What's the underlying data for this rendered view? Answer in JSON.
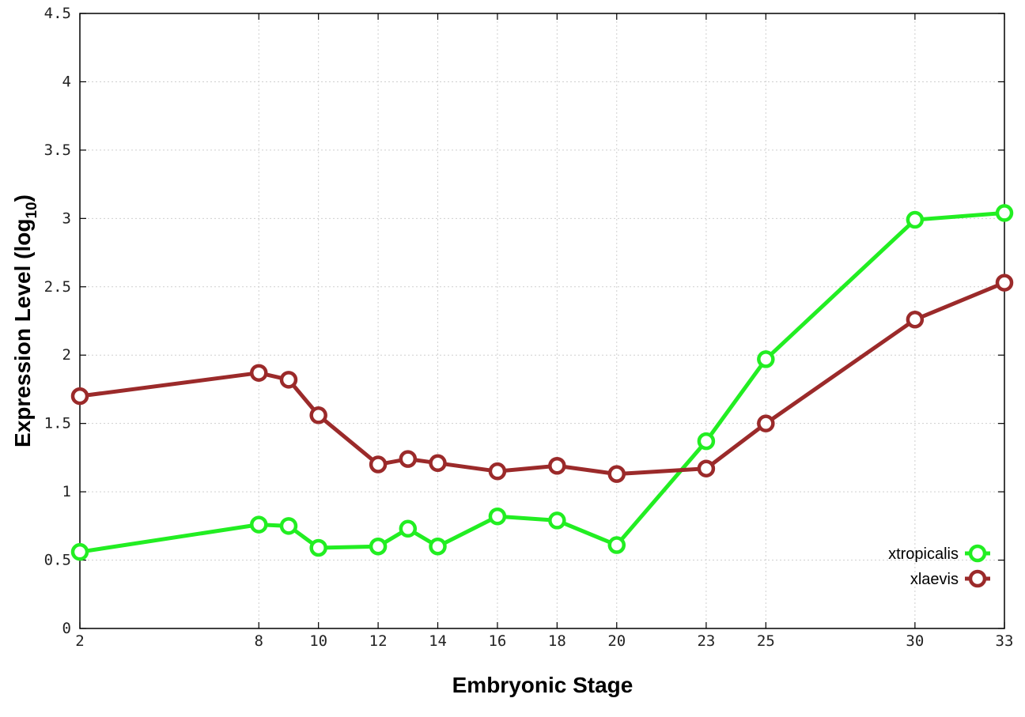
{
  "chart_data": {
    "type": "line",
    "xlabel": "Embryonic Stage",
    "ylabel_main": "Expression Level (log",
    "ylabel_sub": "10",
    "ylabel_close": ")",
    "xlim": [
      2,
      33
    ],
    "ylim": [
      0,
      4.5
    ],
    "x_ticks": [
      2,
      8,
      10,
      12,
      14,
      16,
      18,
      20,
      23,
      25,
      30,
      33
    ],
    "x_tick_labels": [
      "2",
      "8",
      "10",
      "12",
      "14",
      "16",
      "18",
      "20",
      "23",
      "25",
      "30",
      "33"
    ],
    "y_ticks": [
      0,
      0.5,
      1,
      1.5,
      2,
      2.5,
      3,
      3.5,
      4,
      4.5
    ],
    "y_tick_labels": [
      "0",
      "0.5",
      "1",
      "1.5",
      "2",
      "2.5",
      "3",
      "3.5",
      "4",
      "4.5"
    ],
    "grid": true,
    "legend_position": "bottom-right",
    "series": [
      {
        "name": "xtropicalis",
        "color": "#22ee22",
        "x": [
          2,
          8,
          9,
          10,
          12,
          13,
          14,
          16,
          18,
          20,
          23,
          25,
          30,
          33
        ],
        "y": [
          0.56,
          0.76,
          0.75,
          0.59,
          0.6,
          0.73,
          0.6,
          0.82,
          0.79,
          0.61,
          1.37,
          1.97,
          2.99,
          3.04
        ]
      },
      {
        "name": "xlaevis",
        "color": "#9b2a2a",
        "x": [
          2,
          8,
          9,
          10,
          12,
          13,
          14,
          16,
          18,
          20,
          23,
          25,
          30,
          33
        ],
        "y": [
          1.7,
          1.87,
          1.82,
          1.56,
          1.2,
          1.24,
          1.21,
          1.15,
          1.19,
          1.13,
          1.17,
          1.5,
          2.26,
          2.53
        ]
      }
    ]
  }
}
